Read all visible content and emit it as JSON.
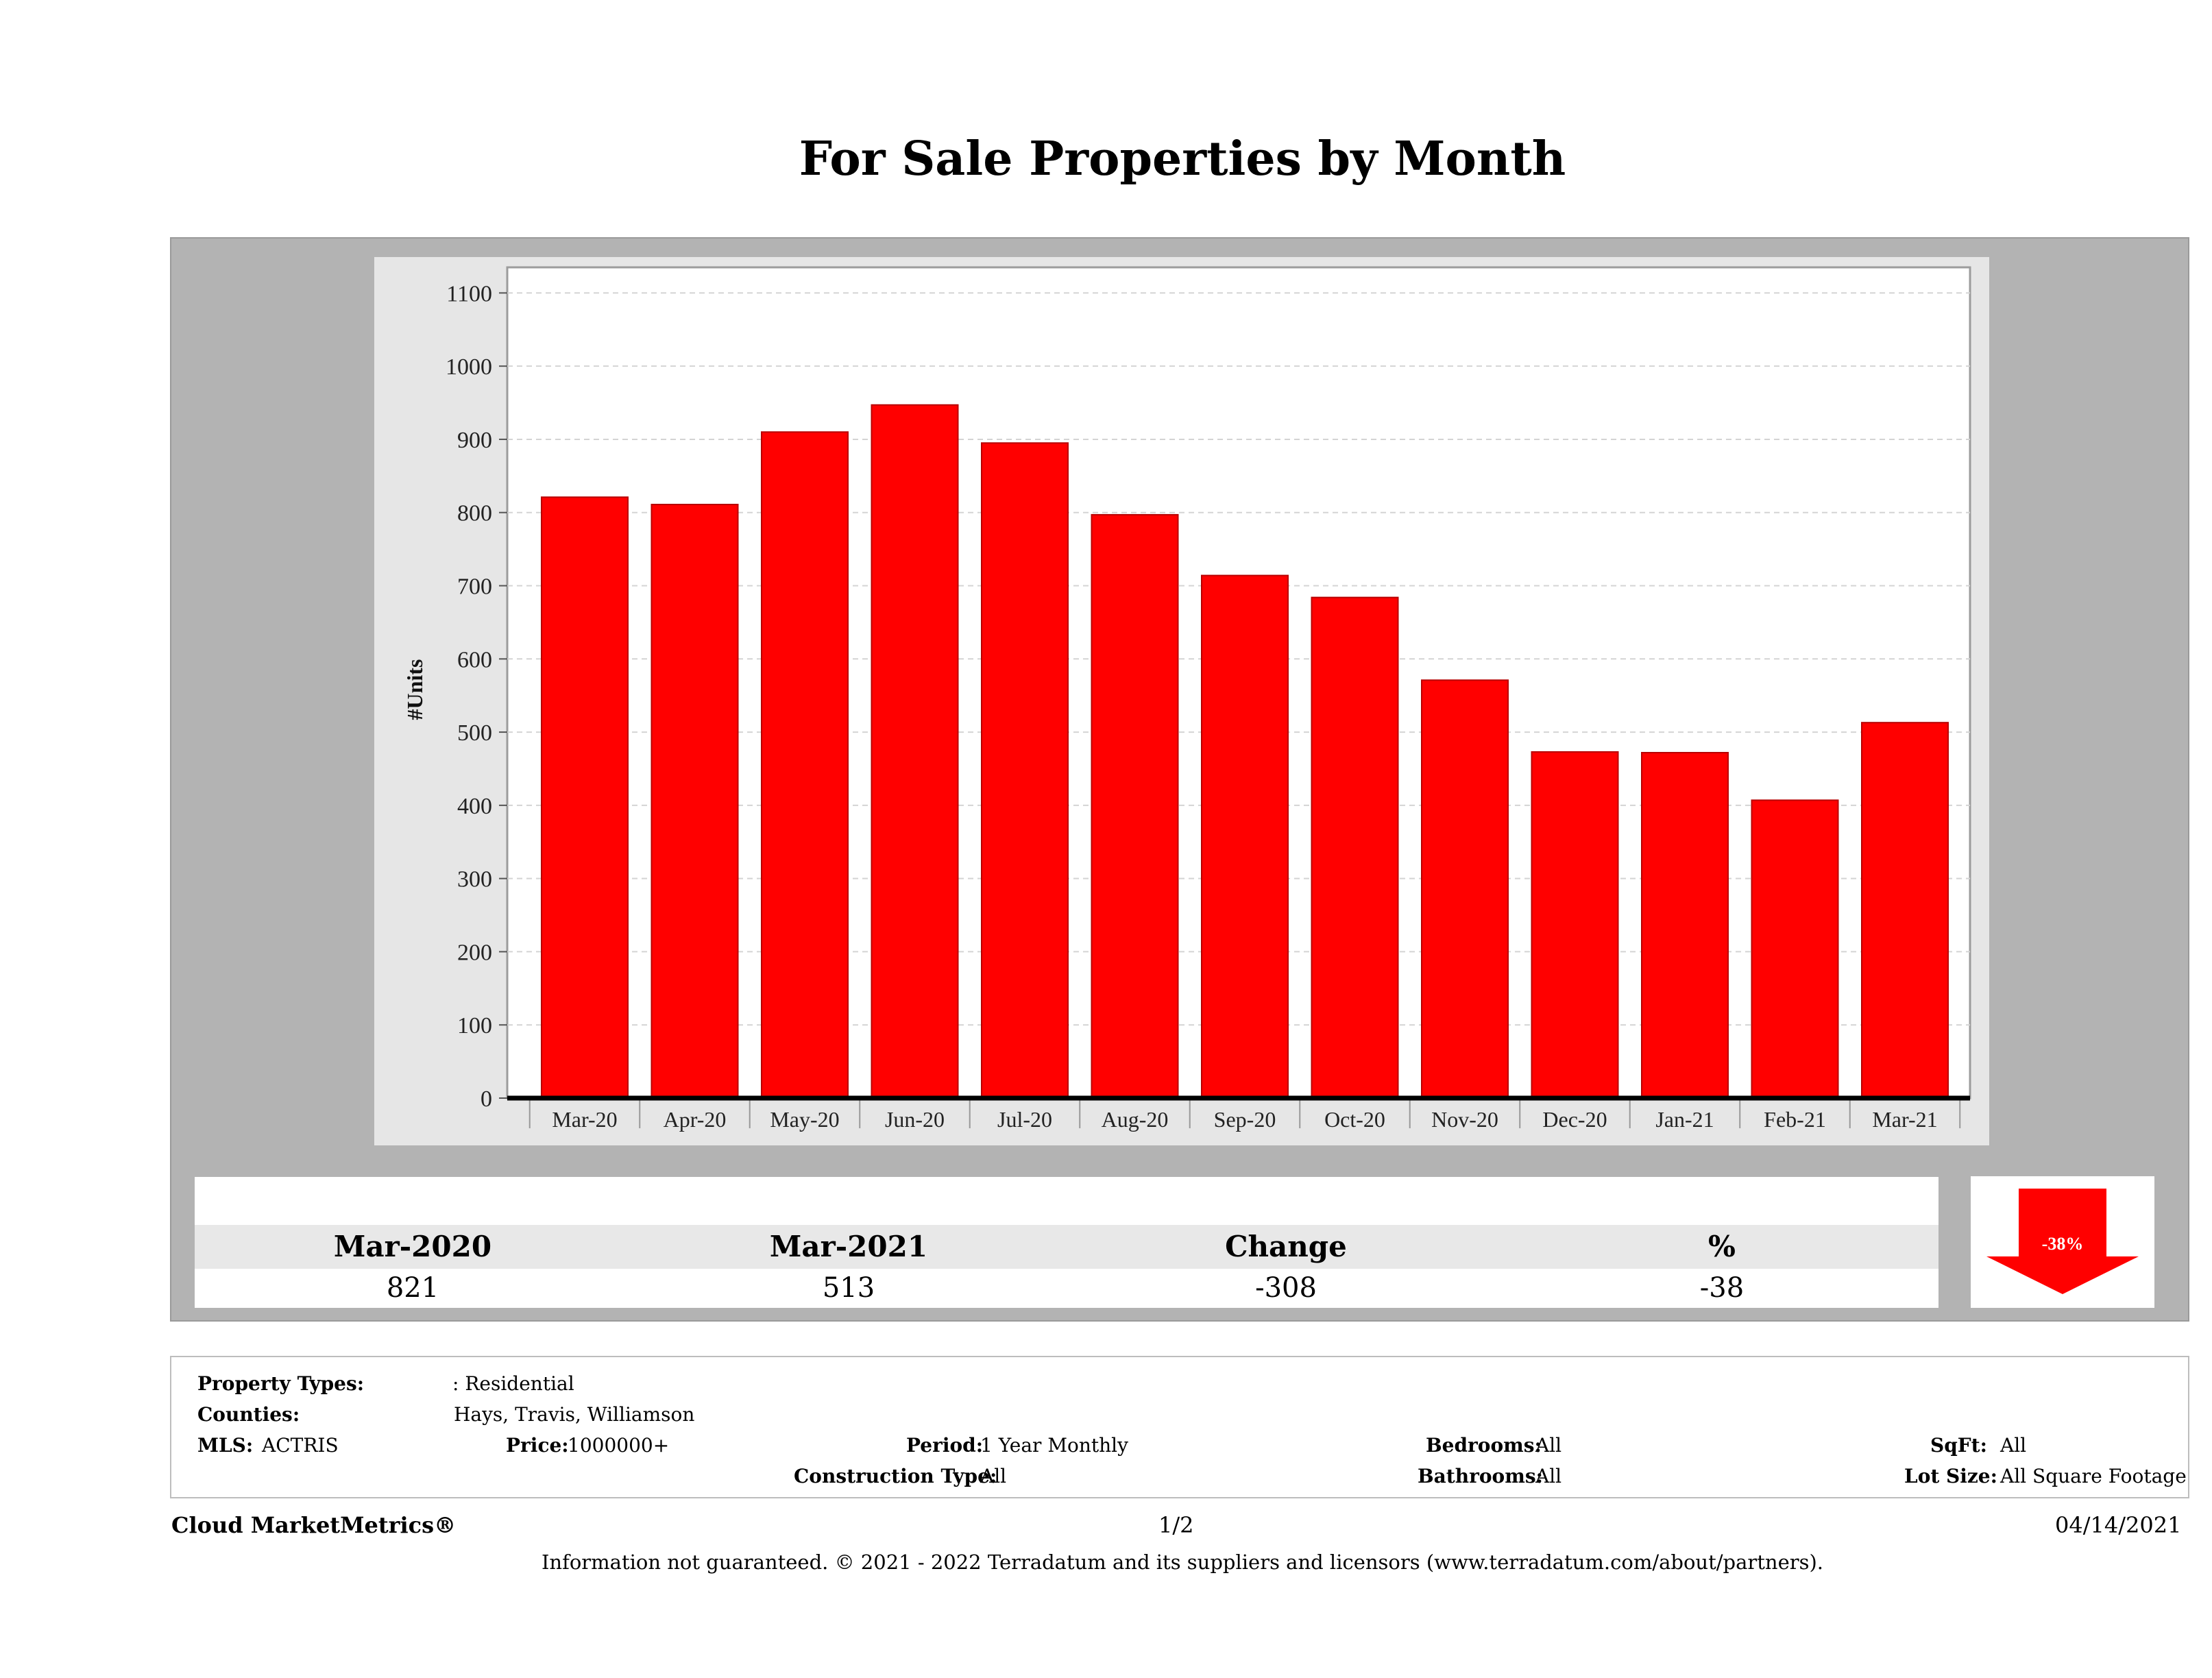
{
  "title": "For Sale Properties by Month",
  "chart_data": {
    "type": "bar",
    "title": "For Sale Properties by Month",
    "xlabel": "",
    "ylabel": "#Units",
    "categories": [
      "Mar-20",
      "Apr-20",
      "May-20",
      "Jun-20",
      "Jul-20",
      "Aug-20",
      "Sep-20",
      "Oct-20",
      "Nov-20",
      "Dec-20",
      "Jan-21",
      "Feb-21",
      "Mar-21"
    ],
    "values": [
      821,
      811,
      910,
      947,
      895,
      797,
      714,
      684,
      571,
      473,
      472,
      407,
      513
    ],
    "ylim": [
      0,
      1135
    ],
    "yticks": [
      0,
      100,
      200,
      300,
      400,
      500,
      600,
      700,
      800,
      900,
      1000,
      1100
    ],
    "grid": true,
    "bar_color": "#ff0000"
  },
  "stats": {
    "headers": [
      "Mar-2020",
      "Mar-2021",
      "Change",
      "%"
    ],
    "values": [
      "821",
      "513",
      "-308",
      "-38"
    ],
    "badge": "-38%",
    "badge_color": "#ff0000"
  },
  "info": {
    "property_types_label": "Property Types:",
    "property_types_value": ": Residential",
    "counties_label": "Counties:",
    "counties_value": "Hays, Travis, Williamson",
    "mls_label": "MLS:",
    "mls_value": "ACTRIS",
    "price_label": "Price:",
    "price_value": "1000000+",
    "period_label": "Period:",
    "period_value": "1 Year Monthly",
    "construction_label": "Construction Type:",
    "construction_value": "All",
    "bedrooms_label": "Bedrooms:",
    "bedrooms_value": "All",
    "bathrooms_label": "Bathrooms:",
    "bathrooms_value": "All",
    "sqft_label": "SqFt:",
    "sqft_value": "All",
    "lotsize_label": "Lot Size:",
    "lotsize_value": "All Square Footage"
  },
  "footer": {
    "brand": "Cloud MarketMetrics®",
    "page": "1/2",
    "date": "04/14/2021",
    "disclaimer": "Information not guaranteed. © 2021 - 2022 Terradatum and its suppliers and licensors (www.terradatum.com/about/partners)."
  }
}
